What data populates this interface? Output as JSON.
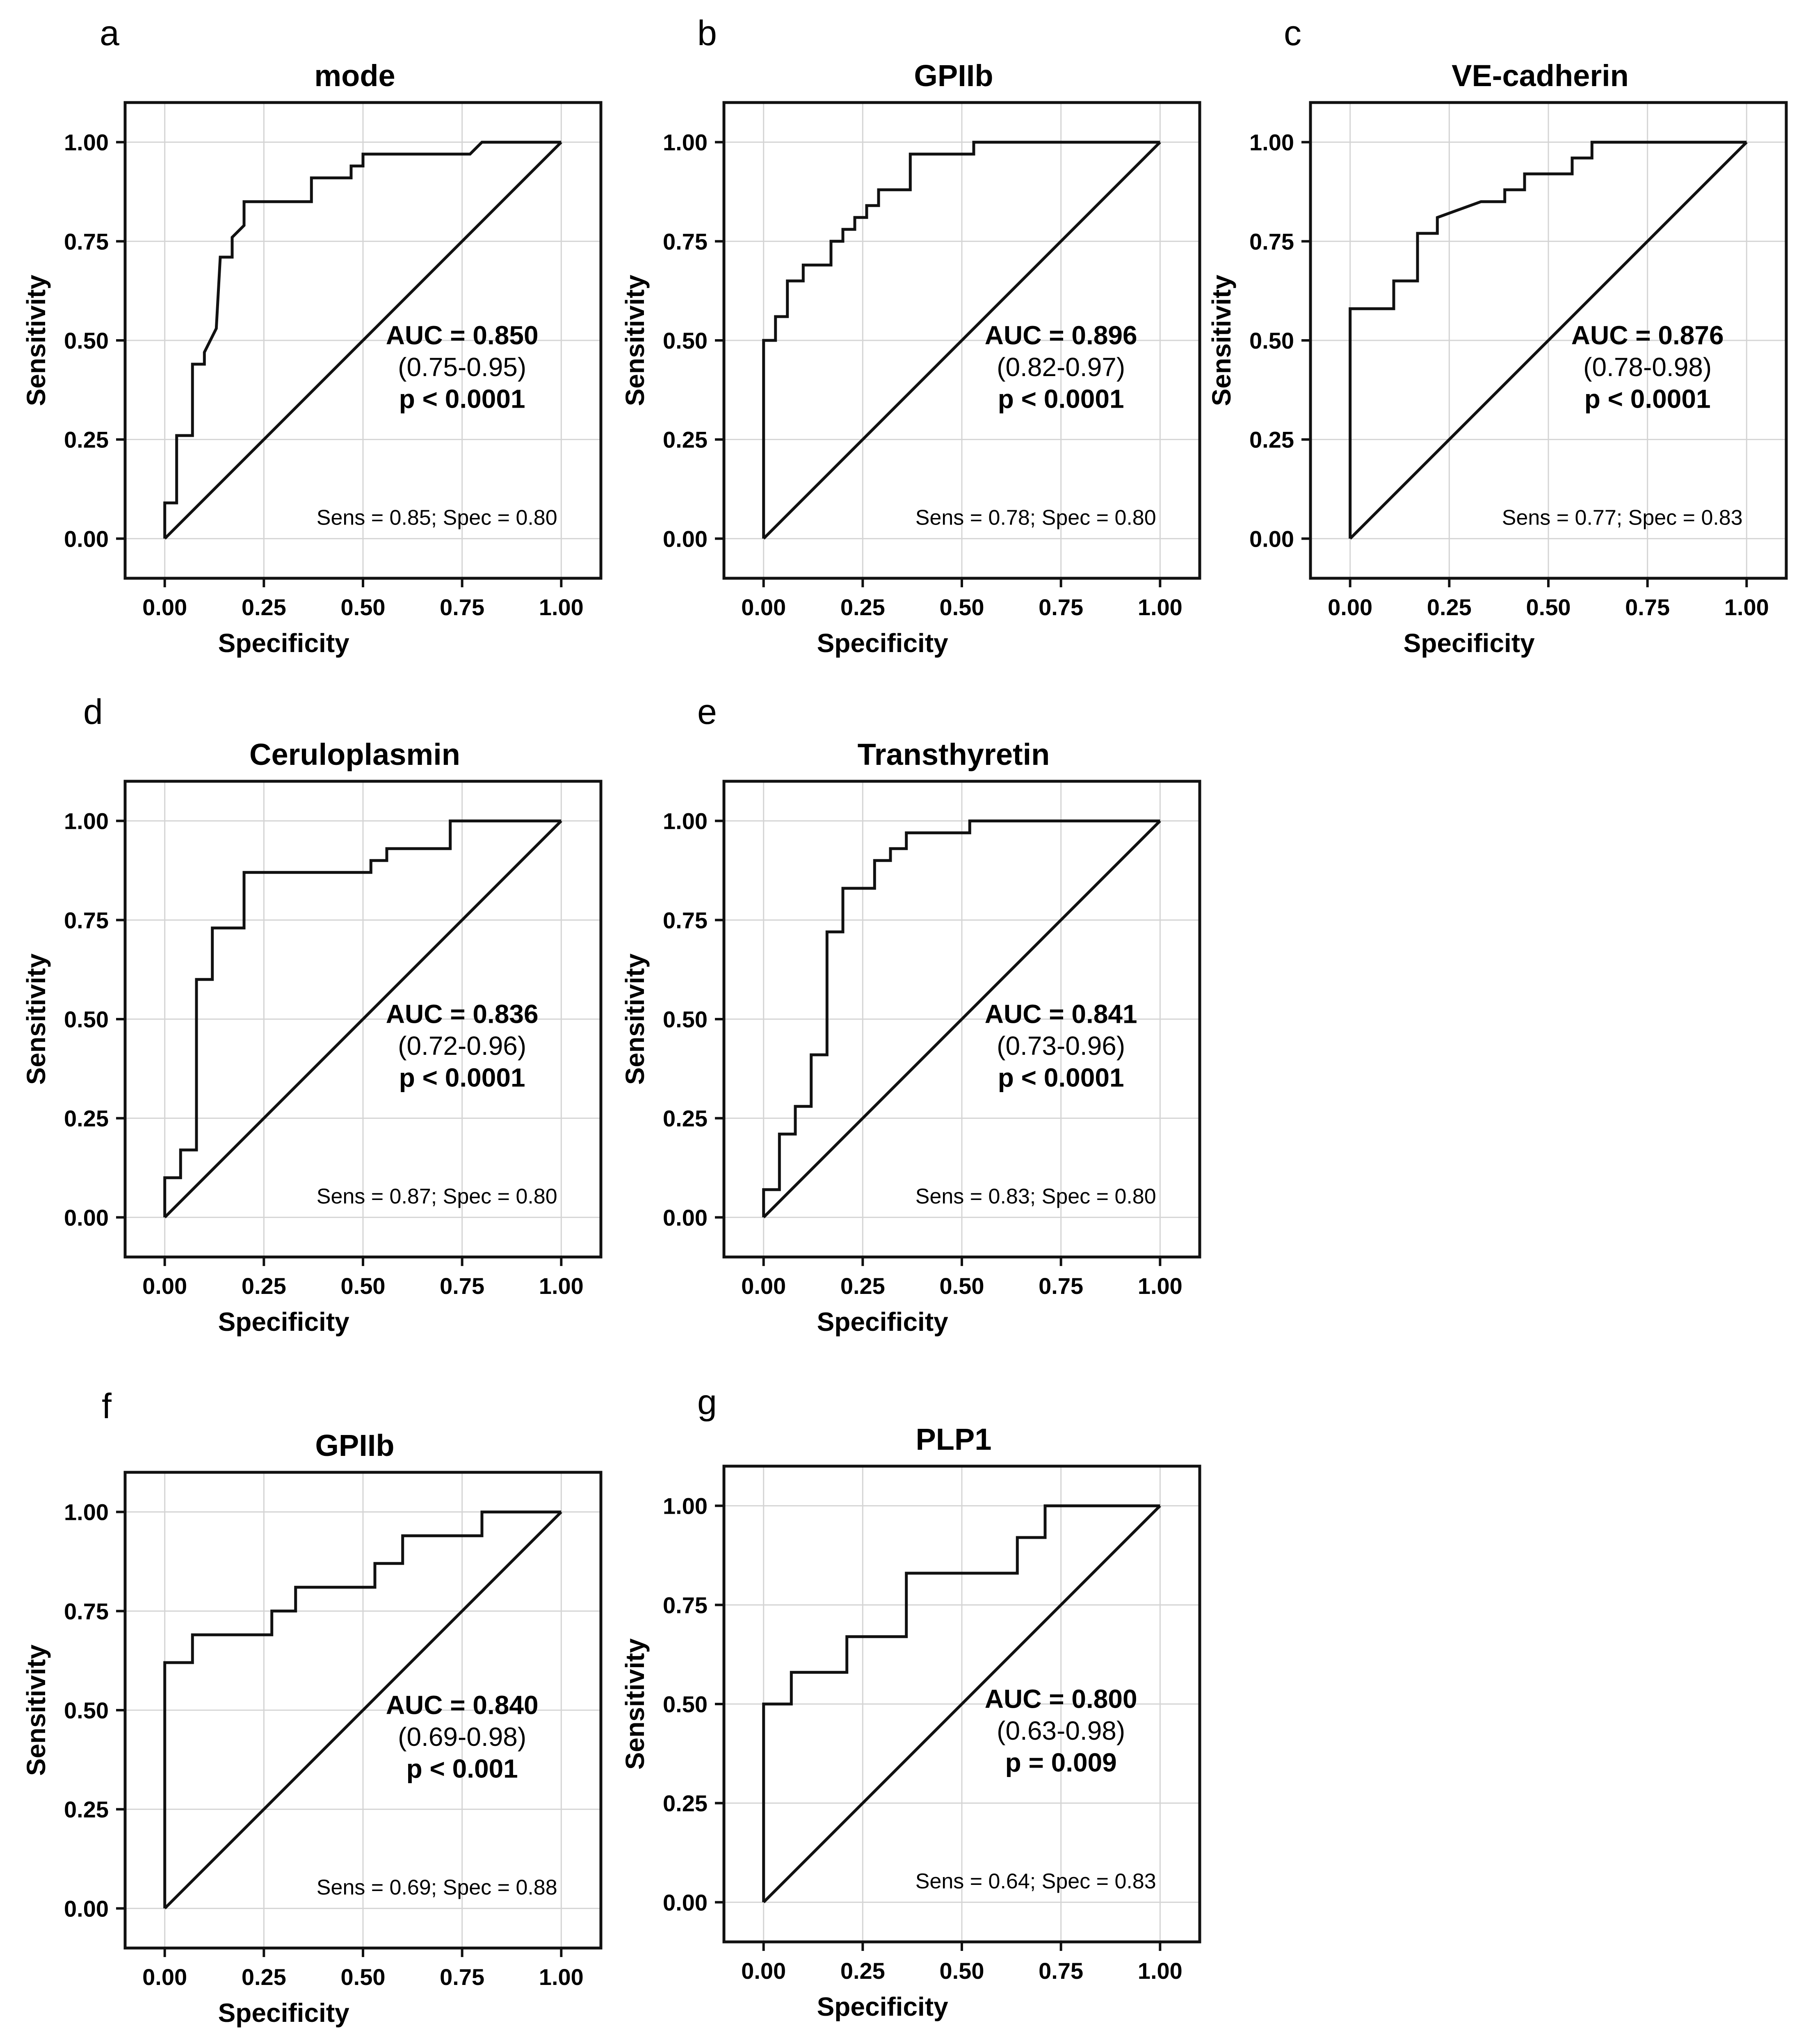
{
  "figure": {
    "tick_labels": [
      "0.00",
      "0.25",
      "0.50",
      "0.75",
      "1.00"
    ],
    "xlabel": "Specificity",
    "ylabel": "Sensitivity"
  },
  "chart_data": [
    {
      "letter": "a",
      "type": "line",
      "title": "mode",
      "xlabel": "Specificity",
      "ylabel": "Sensitivity",
      "xlim": [
        -0.1,
        1.1
      ],
      "ylim": [
        -0.1,
        1.1
      ],
      "grid": true,
      "auc_label": "AUC = 0.850",
      "ci_label": "(0.75-0.95)",
      "p_label": "p < 0.0001",
      "sens_spec_label": "Sens = 0.85; Spec = 0.80",
      "series": [
        {
          "name": "ROC",
          "points": [
            [
              0,
              0
            ],
            [
              0,
              0.09
            ],
            [
              0.03,
              0.09
            ],
            [
              0.03,
              0.26
            ],
            [
              0.07,
              0.26
            ],
            [
              0.07,
              0.44
            ],
            [
              0.1,
              0.44
            ],
            [
              0.1,
              0.47
            ],
            [
              0.13,
              0.53
            ],
            [
              0.14,
              0.71
            ],
            [
              0.17,
              0.71
            ],
            [
              0.17,
              0.76
            ],
            [
              0.2,
              0.79
            ],
            [
              0.2,
              0.85
            ],
            [
              0.37,
              0.85
            ],
            [
              0.37,
              0.91
            ],
            [
              0.47,
              0.91
            ],
            [
              0.47,
              0.94
            ],
            [
              0.5,
              0.94
            ],
            [
              0.5,
              0.97
            ],
            [
              0.77,
              0.97
            ],
            [
              0.8,
              1.0
            ],
            [
              1.0,
              1.0
            ]
          ]
        }
      ]
    },
    {
      "letter": "b",
      "type": "line",
      "title": "GPIIb",
      "xlabel": "Specificity",
      "ylabel": "Sensitivity",
      "xlim": [
        -0.1,
        1.1
      ],
      "ylim": [
        -0.1,
        1.1
      ],
      "grid": true,
      "auc_label": "AUC = 0.896",
      "ci_label": "(0.82-0.97)",
      "p_label": "p < 0.0001",
      "sens_spec_label": "Sens = 0.78; Spec = 0.80",
      "series": [
        {
          "name": "ROC",
          "points": [
            [
              0,
              0
            ],
            [
              0,
              0.5
            ],
            [
              0.03,
              0.5
            ],
            [
              0.03,
              0.56
            ],
            [
              0.06,
              0.56
            ],
            [
              0.06,
              0.65
            ],
            [
              0.1,
              0.65
            ],
            [
              0.1,
              0.69
            ],
            [
              0.17,
              0.69
            ],
            [
              0.17,
              0.75
            ],
            [
              0.2,
              0.75
            ],
            [
              0.2,
              0.78
            ],
            [
              0.23,
              0.78
            ],
            [
              0.23,
              0.81
            ],
            [
              0.26,
              0.81
            ],
            [
              0.26,
              0.84
            ],
            [
              0.29,
              0.84
            ],
            [
              0.29,
              0.88
            ],
            [
              0.37,
              0.88
            ],
            [
              0.37,
              0.97
            ],
            [
              0.53,
              0.97
            ],
            [
              0.53,
              1.0
            ],
            [
              1.0,
              1.0
            ]
          ]
        }
      ]
    },
    {
      "letter": "c",
      "type": "line",
      "title": "VE-cadherin",
      "xlabel": "Specificity",
      "ylabel": "Sensitivity",
      "xlim": [
        -0.1,
        1.1
      ],
      "ylim": [
        -0.1,
        1.1
      ],
      "grid": true,
      "auc_label": "AUC = 0.876",
      "ci_label": "(0.78-0.98)",
      "p_label": "p < 0.0001",
      "sens_spec_label": "Sens = 0.77; Spec = 0.83",
      "series": [
        {
          "name": "ROC",
          "points": [
            [
              0,
              0
            ],
            [
              0,
              0.58
            ],
            [
              0.11,
              0.58
            ],
            [
              0.11,
              0.65
            ],
            [
              0.17,
              0.65
            ],
            [
              0.17,
              0.77
            ],
            [
              0.22,
              0.77
            ],
            [
              0.22,
              0.81
            ],
            [
              0.33,
              0.85
            ],
            [
              0.39,
              0.85
            ],
            [
              0.39,
              0.88
            ],
            [
              0.44,
              0.88
            ],
            [
              0.44,
              0.92
            ],
            [
              0.56,
              0.92
            ],
            [
              0.56,
              0.96
            ],
            [
              0.61,
              0.96
            ],
            [
              0.61,
              1.0
            ],
            [
              1.0,
              1.0
            ]
          ]
        }
      ]
    },
    {
      "letter": "d",
      "type": "line",
      "title": "Ceruloplasmin",
      "xlabel": "Specificity",
      "ylabel": "Sensitivity",
      "xlim": [
        -0.1,
        1.1
      ],
      "ylim": [
        -0.1,
        1.1
      ],
      "grid": true,
      "auc_label": "AUC = 0.836",
      "ci_label": "(0.72-0.96)",
      "p_label": "p < 0.0001",
      "sens_spec_label": "Sens = 0.87; Spec = 0.80",
      "series": [
        {
          "name": "ROC",
          "points": [
            [
              0,
              0
            ],
            [
              0,
              0.1
            ],
            [
              0.04,
              0.1
            ],
            [
              0.04,
              0.17
            ],
            [
              0.08,
              0.17
            ],
            [
              0.08,
              0.6
            ],
            [
              0.12,
              0.6
            ],
            [
              0.12,
              0.73
            ],
            [
              0.2,
              0.73
            ],
            [
              0.2,
              0.87
            ],
            [
              0.52,
              0.87
            ],
            [
              0.52,
              0.9
            ],
            [
              0.56,
              0.9
            ],
            [
              0.56,
              0.93
            ],
            [
              0.72,
              0.93
            ],
            [
              0.72,
              1.0
            ],
            [
              1.0,
              1.0
            ]
          ]
        }
      ]
    },
    {
      "letter": "e",
      "type": "line",
      "title": "Transthyretin",
      "xlabel": "Specificity",
      "ylabel": "Sensitivity",
      "xlim": [
        -0.1,
        1.1
      ],
      "ylim": [
        -0.1,
        1.1
      ],
      "grid": true,
      "auc_label": "AUC = 0.841",
      "ci_label": "(0.73-0.96)",
      "p_label": "p < 0.0001",
      "sens_spec_label": "Sens = 0.83; Spec = 0.80",
      "series": [
        {
          "name": "ROC",
          "points": [
            [
              0,
              0
            ],
            [
              0,
              0.07
            ],
            [
              0.04,
              0.07
            ],
            [
              0.04,
              0.21
            ],
            [
              0.08,
              0.21
            ],
            [
              0.08,
              0.28
            ],
            [
              0.12,
              0.28
            ],
            [
              0.12,
              0.41
            ],
            [
              0.16,
              0.41
            ],
            [
              0.16,
              0.72
            ],
            [
              0.2,
              0.72
            ],
            [
              0.2,
              0.83
            ],
            [
              0.28,
              0.83
            ],
            [
              0.28,
              0.9
            ],
            [
              0.32,
              0.9
            ],
            [
              0.32,
              0.93
            ],
            [
              0.36,
              0.93
            ],
            [
              0.36,
              0.97
            ],
            [
              0.52,
              0.97
            ],
            [
              0.52,
              1.0
            ],
            [
              1.0,
              1.0
            ]
          ]
        }
      ]
    },
    {
      "letter": "f",
      "type": "line",
      "title": "GPIIb",
      "xlabel": "Specificity",
      "ylabel": "Sensitivity",
      "xlim": [
        -0.1,
        1.1
      ],
      "ylim": [
        -0.1,
        1.1
      ],
      "grid": true,
      "auc_label": "AUC = 0.840",
      "ci_label": "(0.69-0.98)",
      "p_label": "p < 0.001",
      "sens_spec_label": "Sens = 0.69; Spec = 0.88",
      "series": [
        {
          "name": "ROC",
          "points": [
            [
              0,
              0
            ],
            [
              0,
              0.62
            ],
            [
              0.07,
              0.62
            ],
            [
              0.07,
              0.69
            ],
            [
              0.27,
              0.69
            ],
            [
              0.27,
              0.75
            ],
            [
              0.33,
              0.75
            ],
            [
              0.33,
              0.81
            ],
            [
              0.53,
              0.81
            ],
            [
              0.53,
              0.87
            ],
            [
              0.6,
              0.87
            ],
            [
              0.6,
              0.94
            ],
            [
              0.8,
              0.94
            ],
            [
              0.8,
              1.0
            ],
            [
              1.0,
              1.0
            ]
          ]
        }
      ]
    },
    {
      "letter": "g",
      "type": "line",
      "title": "PLP1",
      "xlabel": "Specificity",
      "ylabel": "Sensitivity",
      "xlim": [
        -0.1,
        1.1
      ],
      "ylim": [
        -0.1,
        1.1
      ],
      "grid": true,
      "auc_label": "AUC = 0.800",
      "ci_label": "(0.63-0.98)",
      "p_label": "p = 0.009",
      "sens_spec_label": "Sens = 0.64; Spec = 0.83",
      "series": [
        {
          "name": "ROC",
          "points": [
            [
              0,
              0
            ],
            [
              0,
              0.5
            ],
            [
              0.07,
              0.5
            ],
            [
              0.07,
              0.58
            ],
            [
              0.21,
              0.58
            ],
            [
              0.21,
              0.67
            ],
            [
              0.36,
              0.67
            ],
            [
              0.36,
              0.83
            ],
            [
              0.64,
              0.83
            ],
            [
              0.64,
              0.92
            ],
            [
              0.71,
              0.92
            ],
            [
              0.71,
              1.0
            ],
            [
              1.0,
              1.0
            ]
          ]
        }
      ]
    }
  ]
}
